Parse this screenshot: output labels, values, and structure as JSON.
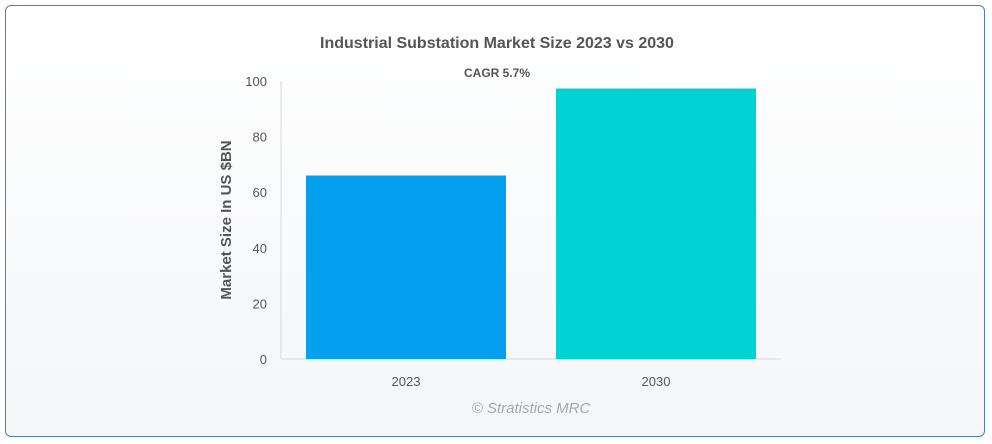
{
  "chart_data": {
    "type": "bar",
    "title": "Industrial Substation Market Size 2023 vs 2030",
    "annotation": "CAGR 5.7%",
    "xlabel": "",
    "ylabel": "Market Size In US $BN",
    "categories": [
      "2023",
      "2030"
    ],
    "values": [
      66,
      97.3
    ],
    "ylim": [
      0,
      100
    ],
    "yticks": [
      0,
      20,
      40,
      60,
      80,
      100
    ],
    "colors": [
      "#049fef",
      "#00d2d3"
    ],
    "grid": false,
    "legend": "none"
  },
  "credit": "© Stratistics MRC"
}
